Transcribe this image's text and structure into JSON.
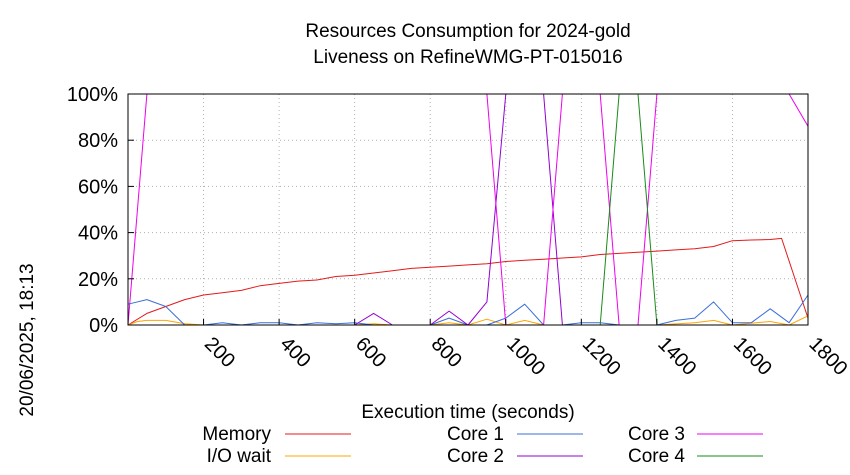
{
  "timestamp": "20/06/2025, 18:13",
  "chart_data": {
    "type": "line",
    "title": "Resources Consumption for 2024-gold",
    "subtitle": "Liveness on RefineWMG-PT-015016",
    "xlabel": "Execution time (seconds)",
    "ylabel": "",
    "xlim": [
      0,
      1800
    ],
    "ylim": [
      0,
      100
    ],
    "x_ticks": [
      200,
      400,
      600,
      800,
      1000,
      1200,
      1400,
      1600,
      1800
    ],
    "x_tick_labels": [
      "200",
      "400",
      "600",
      "800",
      "1000",
      "1200",
      "1400",
      "1600",
      "1800"
    ],
    "y_ticks": [
      0,
      20,
      40,
      60,
      80,
      100
    ],
    "y_tick_labels": [
      "0%",
      "20%",
      "40%",
      "60%",
      "80%",
      "100%"
    ],
    "grid": true,
    "legend_placement": "bottom",
    "series": [
      {
        "name": "Memory",
        "color": "#e41a1c",
        "points": [
          [
            0,
            0
          ],
          [
            50,
            5
          ],
          [
            100,
            8
          ],
          [
            150,
            11
          ],
          [
            200,
            13
          ],
          [
            250,
            14
          ],
          [
            300,
            15
          ],
          [
            350,
            17
          ],
          [
            400,
            18
          ],
          [
            450,
            19
          ],
          [
            500,
            19.5
          ],
          [
            550,
            21
          ],
          [
            600,
            21.5
          ],
          [
            650,
            22.5
          ],
          [
            700,
            23.5
          ],
          [
            750,
            24.5
          ],
          [
            800,
            25
          ],
          [
            850,
            25.5
          ],
          [
            900,
            26
          ],
          [
            950,
            26.5
          ],
          [
            1000,
            27.5
          ],
          [
            1050,
            28
          ],
          [
            1100,
            28.5
          ],
          [
            1150,
            29
          ],
          [
            1200,
            29.5
          ],
          [
            1250,
            30.5
          ],
          [
            1300,
            31
          ],
          [
            1350,
            31.5
          ],
          [
            1400,
            32
          ],
          [
            1450,
            32.5
          ],
          [
            1500,
            33
          ],
          [
            1550,
            34
          ],
          [
            1600,
            36.5
          ],
          [
            1650,
            36.8
          ],
          [
            1700,
            37
          ],
          [
            1730,
            37.5
          ],
          [
            1800,
            3
          ]
        ]
      },
      {
        "name": "I/O wait",
        "color": "#ffa500",
        "points": [
          [
            0,
            0
          ],
          [
            25,
            1.5
          ],
          [
            50,
            2
          ],
          [
            100,
            2
          ],
          [
            150,
            0.5
          ],
          [
            200,
            0
          ],
          [
            300,
            0
          ],
          [
            600,
            0
          ],
          [
            650,
            0.5
          ],
          [
            700,
            0
          ],
          [
            800,
            0
          ],
          [
            850,
            1
          ],
          [
            900,
            0
          ],
          [
            950,
            2.5
          ],
          [
            1000,
            0
          ],
          [
            1050,
            2
          ],
          [
            1100,
            0
          ],
          [
            1200,
            0
          ],
          [
            1400,
            0
          ],
          [
            1500,
            1
          ],
          [
            1550,
            2
          ],
          [
            1600,
            0
          ],
          [
            1700,
            1.5
          ],
          [
            1750,
            0
          ],
          [
            1800,
            4
          ]
        ]
      },
      {
        "name": "Core 1",
        "color": "#3a6fd9",
        "points": [
          [
            0,
            9
          ],
          [
            50,
            11
          ],
          [
            100,
            8
          ],
          [
            150,
            0
          ],
          [
            200,
            0
          ],
          [
            250,
            1
          ],
          [
            300,
            0
          ],
          [
            350,
            1
          ],
          [
            400,
            1
          ],
          [
            450,
            0
          ],
          [
            500,
            1
          ],
          [
            550,
            0.5
          ],
          [
            600,
            1
          ],
          [
            650,
            0
          ],
          [
            700,
            0
          ],
          [
            800,
            0
          ],
          [
            850,
            3
          ],
          [
            900,
            0
          ],
          [
            950,
            0
          ],
          [
            1000,
            3
          ],
          [
            1050,
            9
          ],
          [
            1100,
            0
          ],
          [
            1150,
            0
          ],
          [
            1200,
            1
          ],
          [
            1250,
            1
          ],
          [
            1300,
            0
          ],
          [
            1400,
            0
          ],
          [
            1450,
            2
          ],
          [
            1500,
            3
          ],
          [
            1550,
            10
          ],
          [
            1600,
            1
          ],
          [
            1650,
            1
          ],
          [
            1700,
            7
          ],
          [
            1750,
            1
          ],
          [
            1800,
            13
          ]
        ]
      },
      {
        "name": "Core 2",
        "color": "#9400d3",
        "points": [
          [
            0,
            0
          ],
          [
            50,
            0
          ],
          [
            100,
            0
          ],
          [
            150,
            0
          ],
          [
            200,
            0
          ],
          [
            600,
            0
          ],
          [
            650,
            5
          ],
          [
            700,
            0
          ],
          [
            800,
            0
          ],
          [
            850,
            6
          ],
          [
            900,
            0
          ],
          [
            950,
            10
          ],
          [
            1000,
            100
          ],
          [
            1050,
            100
          ],
          [
            1100,
            100
          ],
          [
            1150,
            0
          ],
          [
            1200,
            0
          ],
          [
            1800,
            0
          ]
        ]
      },
      {
        "name": "Core 3",
        "color": "#ee00ee",
        "points": [
          [
            0,
            0
          ],
          [
            50,
            100
          ],
          [
            100,
            100
          ],
          [
            900,
            100
          ],
          [
            950,
            100
          ],
          [
            1000,
            0
          ],
          [
            1050,
            0
          ],
          [
            1100,
            0
          ],
          [
            1150,
            100
          ],
          [
            1200,
            100
          ],
          [
            1250,
            100
          ],
          [
            1300,
            0
          ],
          [
            1350,
            0
          ],
          [
            1400,
            100
          ],
          [
            1450,
            100
          ],
          [
            1500,
            100
          ],
          [
            1700,
            100
          ],
          [
            1750,
            100
          ],
          [
            1800,
            86
          ]
        ]
      },
      {
        "name": "Core 4",
        "color": "#1a8a1a",
        "points": [
          [
            0,
            0
          ],
          [
            1200,
            0
          ],
          [
            1250,
            0
          ],
          [
            1300,
            100
          ],
          [
            1350,
            100
          ],
          [
            1400,
            0
          ],
          [
            1800,
            0
          ]
        ]
      }
    ]
  }
}
